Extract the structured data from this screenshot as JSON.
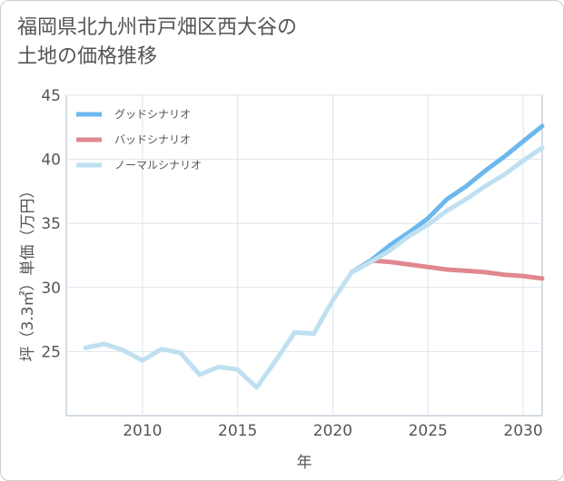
{
  "title_line1": "福岡県北九州市戸畑区西大谷の",
  "title_line2": "土地の価格推移",
  "chart_data": {
    "type": "line",
    "title": "福岡県北九州市戸畑区西大谷の土地の価格推移",
    "xlabel": "年",
    "ylabel": "坪（3.3㎡）単価（万円）",
    "xlim": [
      2006,
      2031
    ],
    "ylim": [
      20,
      45
    ],
    "xticks": [
      2010,
      2015,
      2020,
      2025,
      2030
    ],
    "yticks": [
      25,
      30,
      35,
      40,
      45
    ],
    "grid": true,
    "legend_position": "top-left",
    "series": [
      {
        "name": "グッドシナリオ",
        "color": "#6cb8ec",
        "x": [
          2021,
          2022,
          2023,
          2024,
          2025,
          2026,
          2027,
          2028,
          2029,
          2030,
          2031
        ],
        "y": [
          31.2,
          32.1,
          33.3,
          34.3,
          35.4,
          36.9,
          37.9,
          39.1,
          40.2,
          41.4,
          42.6
        ]
      },
      {
        "name": "バッドシナリオ",
        "color": "#e0878f",
        "x": [
          2021,
          2022,
          2023,
          2024,
          2025,
          2026,
          2027,
          2028,
          2029,
          2030,
          2031
        ],
        "y": [
          31.2,
          32.1,
          32.0,
          31.8,
          31.6,
          31.4,
          31.3,
          31.2,
          31.0,
          30.9,
          30.7
        ]
      },
      {
        "name": "ノーマルシナリオ",
        "color": "#bfe0f0",
        "x": [
          2007,
          2008,
          2009,
          2010,
          2011,
          2012,
          2013,
          2014,
          2015,
          2016,
          2017,
          2018,
          2019,
          2020,
          2021,
          2022,
          2023,
          2024,
          2025,
          2026,
          2027,
          2028,
          2029,
          2030,
          2031
        ],
        "y": [
          25.3,
          25.6,
          25.1,
          24.3,
          25.2,
          24.9,
          23.2,
          23.8,
          23.6,
          22.2,
          24.3,
          26.5,
          26.4,
          29.0,
          31.2,
          32.0,
          32.9,
          34.0,
          34.9,
          36.0,
          36.9,
          37.9,
          38.8,
          39.9,
          40.9
        ]
      }
    ]
  }
}
